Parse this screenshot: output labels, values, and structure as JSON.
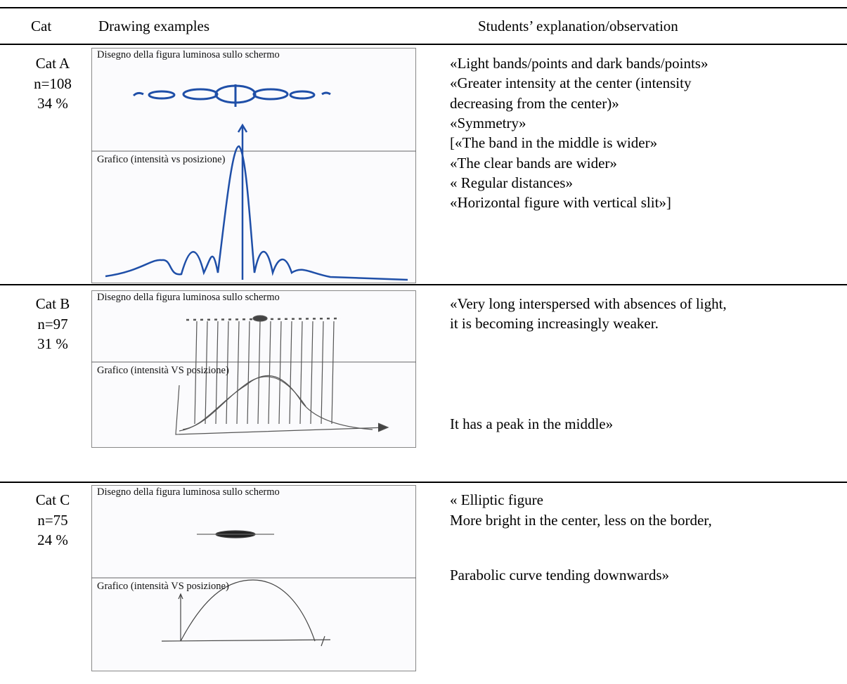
{
  "table": {
    "header": [
      "Cat",
      "Drawing examples",
      "Students’ explanation/observation"
    ],
    "rows": [
      {
        "cat": [
          "Cat A",
          "n=108",
          "34 %"
        ],
        "drawing": {
          "top_label": "Disegno della figura luminosa sullo schermo",
          "bottom_label": "Grafico (intensità vs posizione)"
        },
        "explanation": [
          "«Light bands/points and dark bands/points»",
          "«Greater intensity at the center (intensity",
          "decreasing from the center)»",
          "«Symmetry»",
          "[«The band in the middle is wider»",
          "«The clear bands are wider»",
          "« Regular distances»",
          "«Horizontal figure with vertical slit»]"
        ]
      },
      {
        "cat": [
          "Cat B",
          "n=97",
          "31 %"
        ],
        "drawing": {
          "top_label": "Disegno della figura luminosa sullo schermo",
          "bottom_label": "Grafico (intensità VS posizione)"
        },
        "explanation": [
          "«Very long interspersed with absences of light,",
          "it is becoming increasingly weaker.",
          "It has a peak in the middle»"
        ]
      },
      {
        "cat": [
          "Cat C",
          "n=75",
          "24 %"
        ],
        "drawing": {
          "top_label": "Disegno della figura luminosa sullo schermo",
          "bottom_label": "Grafico (intensità VS posizione)"
        },
        "explanation": [
          "« Elliptic figure",
          "More bright in the center, less on the border,",
          "Parabolic curve tending downwards»"
        ]
      }
    ]
  }
}
